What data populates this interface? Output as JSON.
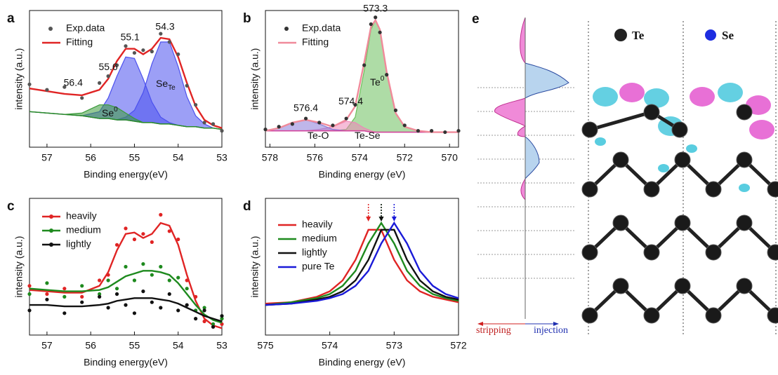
{
  "chart_data": [
    {
      "type": "line",
      "label": "a",
      "xlabel": "Binding energy(eV)",
      "ylabel": "intensity (a.u.)",
      "x": [
        57.4,
        57,
        56.6,
        56.2,
        55.8,
        55.6,
        55.4,
        55.2,
        55,
        54.8,
        54.6,
        54.4,
        54.2,
        54,
        53.8,
        53.6,
        53.4,
        53.2,
        53
      ],
      "xlim": [
        57.4,
        53
      ],
      "xticks": [
        57,
        56,
        55,
        54,
        53
      ],
      "ylim": [
        0,
        1
      ],
      "series": [
        {
          "style": "area",
          "color": "#4b50ee",
          "values": [
            0.26,
            0.25,
            0.24,
            0.23,
            0.21,
            0.21,
            0.2,
            0.22,
            0.27,
            0.4,
            0.61,
            0.77,
            0.77,
            0.59,
            0.37,
            0.23,
            0.17,
            0.14,
            0.13
          ]
        },
        {
          "style": "area",
          "color": "#4b50ee",
          "values": [
            0.26,
            0.25,
            0.24,
            0.23,
            0.26,
            0.36,
            0.52,
            0.66,
            0.65,
            0.5,
            0.33,
            0.22,
            0.18,
            0.16,
            0.15,
            0.15,
            0.14,
            0.14,
            0.13
          ]
        },
        {
          "style": "area",
          "color": "#3a9a3a",
          "values": [
            0.26,
            0.25,
            0.24,
            0.25,
            0.31,
            0.31,
            0.29,
            0.25,
            0.21,
            0.18,
            0.18,
            0.17,
            0.17,
            0.16,
            0.15,
            0.15,
            0.14,
            0.14,
            0.13
          ]
        },
        {
          "style": "baseline",
          "color": "#2a8a2a",
          "values": [
            0.26,
            0.25,
            0.24,
            0.23,
            0.21,
            0.21,
            0.2,
            0.2,
            0.19,
            0.18,
            0.18,
            0.17,
            0.17,
            0.16,
            0.15,
            0.15,
            0.14,
            0.14,
            0.13
          ]
        },
        {
          "name": "Exp.data",
          "style": "points",
          "color": "#555555",
          "values": [
            0.46,
            0.42,
            0.44,
            0.36,
            0.47,
            0.52,
            0.6,
            0.74,
            0.69,
            0.71,
            0.7,
            0.83,
            0.77,
            0.68,
            0.45,
            0.31,
            0.18,
            0.17,
            0.12
          ]
        },
        {
          "name": "Fitting",
          "style": "line",
          "color": "#e02424",
          "values": [
            0.43,
            0.41,
            0.39,
            0.38,
            0.42,
            0.5,
            0.63,
            0.72,
            0.72,
            0.68,
            0.72,
            0.8,
            0.79,
            0.66,
            0.47,
            0.3,
            0.2,
            0.16,
            0.14
          ]
        }
      ],
      "peak_labels": [
        55.1,
        54.3,
        55.6,
        56.4
      ],
      "annotations": [
        {
          "text": "Se",
          "sub": "Te"
        },
        {
          "text": "Se",
          "sup": "0"
        }
      ]
    },
    {
      "type": "line",
      "label": "b",
      "xlabel": "Binding energy (eV)",
      "ylabel": "intensity (a.u.)",
      "x": [
        578.2,
        577.6,
        577,
        576.4,
        575.8,
        575.2,
        574.6,
        574.2,
        573.8,
        573.5,
        573.3,
        573.1,
        572.8,
        572.4,
        572,
        571.4,
        570.8,
        570.2,
        569.6
      ],
      "xlim": [
        578.2,
        569.6
      ],
      "xticks": [
        578,
        576,
        574,
        572,
        570
      ],
      "ylim": [
        0,
        1
      ],
      "series": [
        {
          "style": "area",
          "color": "#6cc05c",
          "values": [
            0.12,
            0.12,
            0.12,
            0.12,
            0.12,
            0.12,
            0.13,
            0.22,
            0.56,
            0.86,
            0.93,
            0.86,
            0.55,
            0.25,
            0.15,
            0.12,
            0.11,
            0.11,
            0.11
          ]
        },
        {
          "style": "area",
          "color": "#ee86b8",
          "values": [
            0.12,
            0.12,
            0.12,
            0.12,
            0.13,
            0.15,
            0.19,
            0.18,
            0.14,
            0.12,
            0.11,
            0.11,
            0.11,
            0.11,
            0.11,
            0.11,
            0.11,
            0.11,
            0.11
          ]
        },
        {
          "style": "area",
          "color": "#8a7ad8",
          "values": [
            0.12,
            0.14,
            0.18,
            0.2,
            0.17,
            0.13,
            0.12,
            0.12,
            0.12,
            0.11,
            0.11,
            0.11,
            0.11,
            0.11,
            0.11,
            0.11,
            0.11,
            0.11,
            0.11
          ]
        },
        {
          "style": "baseline",
          "color": "#d8409a",
          "values": [
            0.12,
            0.12,
            0.12,
            0.12,
            0.12,
            0.12,
            0.12,
            0.12,
            0.12,
            0.11,
            0.11,
            0.11,
            0.11,
            0.11,
            0.11,
            0.11,
            0.11,
            0.11,
            0.11
          ]
        },
        {
          "name": "Exp.data",
          "style": "points",
          "color": "#333333",
          "values": [
            0.13,
            0.15,
            0.17,
            0.21,
            0.18,
            0.16,
            0.21,
            0.31,
            0.6,
            0.9,
            0.95,
            0.84,
            0.53,
            0.27,
            0.16,
            0.12,
            0.12,
            0.11,
            0.12
          ]
        },
        {
          "name": "Fitting",
          "style": "line",
          "color": "#f08a9a",
          "values": [
            0.12,
            0.14,
            0.18,
            0.2,
            0.18,
            0.15,
            0.2,
            0.3,
            0.62,
            0.88,
            0.93,
            0.86,
            0.55,
            0.25,
            0.15,
            0.12,
            0.11,
            0.11,
            0.11
          ]
        }
      ],
      "peak_labels": [
        573.3,
        574.4,
        576.4
      ],
      "annotations": [
        {
          "text": "Te",
          "sup": "0"
        },
        {
          "text": "Te-O"
        },
        {
          "text": "Te-Se"
        }
      ]
    },
    {
      "type": "line",
      "label": "c",
      "xlabel": "Binding energy(eV)",
      "ylabel": "intensity (a.u.)",
      "x": [
        57.4,
        57,
        56.6,
        56.2,
        55.8,
        55.6,
        55.4,
        55.2,
        55,
        54.8,
        54.6,
        54.4,
        54.2,
        54,
        53.8,
        53.6,
        53.4,
        53.2,
        53
      ],
      "xlim": [
        57.4,
        53
      ],
      "xticks": [
        57,
        56,
        55,
        54,
        53
      ],
      "ylim": [
        0,
        1
      ],
      "series": [
        {
          "name": "heavily",
          "style": "line",
          "color": "#e02424",
          "values": [
            0.33,
            0.32,
            0.31,
            0.31,
            0.36,
            0.46,
            0.62,
            0.74,
            0.75,
            0.71,
            0.74,
            0.82,
            0.8,
            0.66,
            0.44,
            0.25,
            0.12,
            0.07,
            0.05
          ],
          "points": [
            0.36,
            0.3,
            0.34,
            0.28,
            0.4,
            0.44,
            0.66,
            0.78,
            0.7,
            0.74,
            0.68,
            0.88,
            0.76,
            0.7,
            0.4,
            0.28,
            0.1,
            0.06,
            0.08
          ]
        },
        {
          "name": "medium",
          "style": "line",
          "color": "#1e8a1e",
          "values": [
            0.34,
            0.33,
            0.32,
            0.32,
            0.33,
            0.35,
            0.39,
            0.43,
            0.45,
            0.47,
            0.47,
            0.46,
            0.44,
            0.38,
            0.3,
            0.22,
            0.15,
            0.11,
            0.09
          ],
          "points": [
            0.3,
            0.38,
            0.28,
            0.36,
            0.3,
            0.4,
            0.34,
            0.5,
            0.4,
            0.52,
            0.44,
            0.5,
            0.4,
            0.42,
            0.34,
            0.18,
            0.2,
            0.08,
            0.12
          ]
        },
        {
          "name": "lightly",
          "style": "line",
          "color": "#111111",
          "values": [
            0.22,
            0.22,
            0.21,
            0.21,
            0.22,
            0.23,
            0.25,
            0.26,
            0.27,
            0.27,
            0.27,
            0.26,
            0.25,
            0.23,
            0.2,
            0.17,
            0.14,
            0.12,
            0.1
          ],
          "points": [
            0.18,
            0.26,
            0.16,
            0.24,
            0.28,
            0.2,
            0.3,
            0.22,
            0.16,
            0.32,
            0.24,
            0.2,
            0.3,
            0.18,
            0.22,
            0.12,
            0.18,
            0.06,
            0.14
          ]
        }
      ]
    },
    {
      "type": "line",
      "label": "d",
      "xlabel": "Binding energy (eV)",
      "ylabel": "intensity (a.u.)",
      "x": [
        575,
        574.6,
        574.2,
        574,
        573.8,
        573.6,
        573.4,
        573.2,
        573,
        572.8,
        572.6,
        572.4,
        572.2,
        572
      ],
      "xlim": [
        575,
        572
      ],
      "xticks": [
        575,
        574,
        573,
        572
      ],
      "ylim": [
        0,
        1
      ],
      "arrows": true,
      "series": [
        {
          "name": "heavily",
          "style": "line",
          "color": "#e02424",
          "values": [
            0.23,
            0.24,
            0.28,
            0.32,
            0.4,
            0.55,
            0.77,
            0.77,
            0.55,
            0.4,
            0.32,
            0.28,
            0.26,
            0.24
          ]
        },
        {
          "name": "medium",
          "style": "line",
          "color": "#1e8a1e",
          "values": [
            0.22,
            0.24,
            0.27,
            0.3,
            0.36,
            0.47,
            0.67,
            0.82,
            0.67,
            0.47,
            0.36,
            0.3,
            0.27,
            0.25
          ]
        },
        {
          "name": "lightly",
          "style": "line",
          "color": "#111111",
          "values": [
            0.22,
            0.23,
            0.26,
            0.28,
            0.32,
            0.4,
            0.55,
            0.77,
            0.77,
            0.55,
            0.4,
            0.32,
            0.28,
            0.26
          ]
        },
        {
          "name": "pure Te",
          "style": "line",
          "color": "#1a1ad8",
          "values": [
            0.22,
            0.23,
            0.25,
            0.27,
            0.3,
            0.36,
            0.47,
            0.67,
            0.82,
            0.67,
            0.47,
            0.36,
            0.3,
            0.27
          ]
        }
      ]
    }
  ],
  "diagram": {
    "label": "e",
    "atoms": [
      "Te",
      "Se"
    ],
    "directions": [
      "stripping",
      "injection"
    ]
  }
}
